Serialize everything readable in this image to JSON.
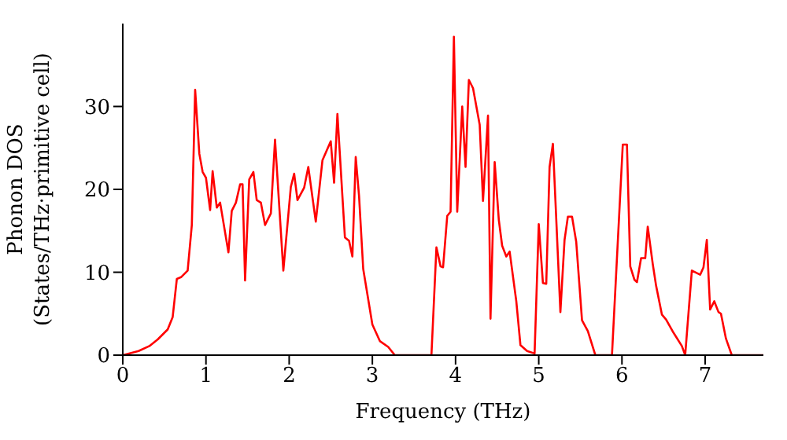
{
  "chart_data": {
    "type": "line",
    "xlabel": "Frequency (THz)",
    "ylabel": "Phonon DOS\n(States/THz·primitive cell)",
    "x": [
      0,
      0.19,
      0.32,
      0.42,
      0.54,
      0.6,
      0.65,
      0.7,
      0.78,
      0.83,
      0.87,
      0.92,
      0.96,
      1.0,
      1.05,
      1.08,
      1.13,
      1.17,
      1.27,
      1.31,
      1.36,
      1.41,
      1.44,
      1.47,
      1.52,
      1.57,
      1.61,
      1.66,
      1.71,
      1.78,
      1.83,
      1.93,
      2.02,
      2.06,
      2.1,
      2.18,
      2.23,
      2.32,
      2.4,
      2.5,
      2.54,
      2.58,
      2.67,
      2.72,
      2.76,
      2.8,
      2.84,
      2.89,
      3.0,
      3.09,
      3.19,
      3.27,
      3.71,
      3.77,
      3.82,
      3.85,
      3.9,
      3.94,
      3.98,
      4.02,
      4.08,
      4.12,
      4.16,
      4.21,
      4.29,
      4.33,
      4.39,
      4.42,
      4.47,
      4.52,
      4.56,
      4.61,
      4.65,
      4.73,
      4.78,
      4.86,
      4.95,
      5.0,
      5.05,
      5.09,
      5.13,
      5.17,
      5.26,
      5.31,
      5.35,
      5.4,
      5.45,
      5.52,
      5.59,
      5.68,
      5.88,
      6.01,
      6.06,
      6.1,
      6.15,
      6.18,
      6.23,
      6.28,
      6.31,
      6.37,
      6.41,
      6.48,
      6.53,
      6.62,
      6.72,
      6.76,
      6.84,
      6.94,
      6.98,
      7.02,
      7.06,
      7.11,
      7.16,
      7.19,
      7.25,
      7.32,
      7.7
    ],
    "series": [
      {
        "color": "#ff0000",
        "values": [
          0,
          0.5,
          1.1,
          1.9,
          3.1,
          4.6,
          9.2,
          9.4,
          10.2,
          15.7,
          32,
          24.3,
          22.1,
          21.4,
          17.5,
          22.2,
          17.8,
          18.4,
          12.4,
          17.4,
          18.4,
          20.6,
          20.6,
          9,
          21.2,
          22.1,
          18.7,
          18.4,
          15.7,
          17.1,
          26,
          10.2,
          20.3,
          21.9,
          18.7,
          20.2,
          22.7,
          16.1,
          23.5,
          25.8,
          20.8,
          29.1,
          14.2,
          13.8,
          11.9,
          23.9,
          19.2,
          10.4,
          3.7,
          1.7,
          1,
          0,
          0,
          13,
          10.7,
          10.6,
          16.8,
          17.3,
          38.4,
          17.3,
          30,
          22.7,
          33.2,
          32.2,
          27.8,
          18.6,
          28.9,
          4.4,
          23.3,
          16.3,
          13.2,
          11.9,
          12.5,
          6.5,
          1.2,
          0.5,
          0.2,
          15.8,
          8.7,
          8.6,
          22.7,
          25.5,
          5.2,
          13.9,
          16.7,
          16.7,
          13.7,
          4.2,
          2.9,
          0,
          0,
          25.4,
          25.4,
          10.7,
          9.1,
          8.8,
          11.7,
          11.7,
          15.5,
          11,
          8.4,
          4.9,
          4.3,
          2.7,
          1.1,
          0,
          10.2,
          9.7,
          10.6,
          13.9,
          5.5,
          6.5,
          5.2,
          5,
          2,
          0,
          0
        ]
      }
    ],
    "xlim": [
      0,
      7.7
    ],
    "xticks": [
      0,
      1,
      2,
      3,
      4,
      5,
      6,
      7
    ],
    "ylim": [
      0,
      40
    ],
    "yticks": [
      0,
      10,
      20,
      30
    ],
    "marker": "none",
    "line_style": "solid",
    "legend": false,
    "grid": false
  }
}
